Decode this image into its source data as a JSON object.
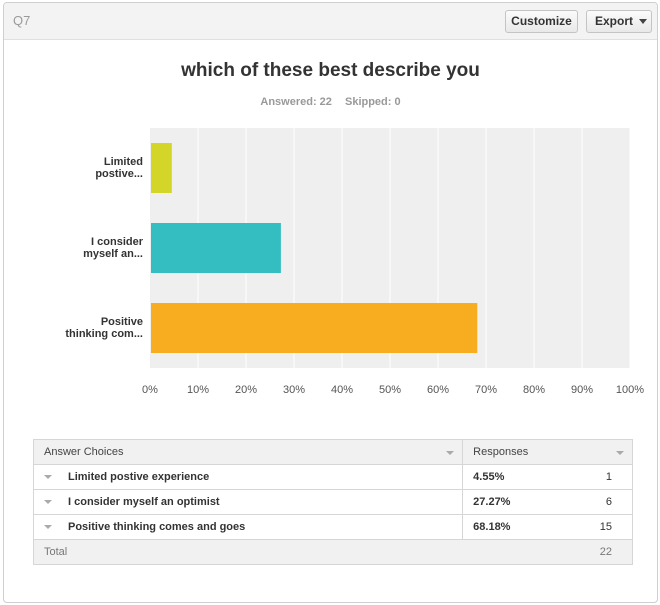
{
  "header": {
    "question_number": "Q7",
    "customize_label": "Customize",
    "export_label": "Export"
  },
  "question": {
    "title": "which of these best describe you",
    "answered": "Answered: 22",
    "skipped": "Skipped: 0"
  },
  "colors": {
    "bar1": "#d3d628",
    "bar2": "#34bec1",
    "bar3": "#f7ad1f",
    "plot_bg": "#efefef"
  },
  "chart_data": {
    "type": "bar",
    "orientation": "horizontal",
    "categories": [
      [
        "Limited",
        "postive..."
      ],
      [
        "I consider",
        "myself an..."
      ],
      [
        "Positive",
        "thinking com..."
      ]
    ],
    "values": [
      4.55,
      27.27,
      68.18
    ],
    "xlim": [
      0,
      100
    ],
    "ticks": [
      "0%",
      "10%",
      "20%",
      "30%",
      "40%",
      "50%",
      "60%",
      "70%",
      "80%",
      "90%",
      "100%"
    ],
    "grid": true
  },
  "table": {
    "headers": {
      "choices": "Answer Choices",
      "responses": "Responses"
    },
    "rows": [
      {
        "choice": "Limited postive experience",
        "percent": "4.55%",
        "count": "1"
      },
      {
        "choice": "I consider myself an optimist",
        "percent": "27.27%",
        "count": "6"
      },
      {
        "choice": "Positive thinking comes and goes",
        "percent": "68.18%",
        "count": "15"
      }
    ],
    "total_label": "Total",
    "total_value": "22"
  }
}
